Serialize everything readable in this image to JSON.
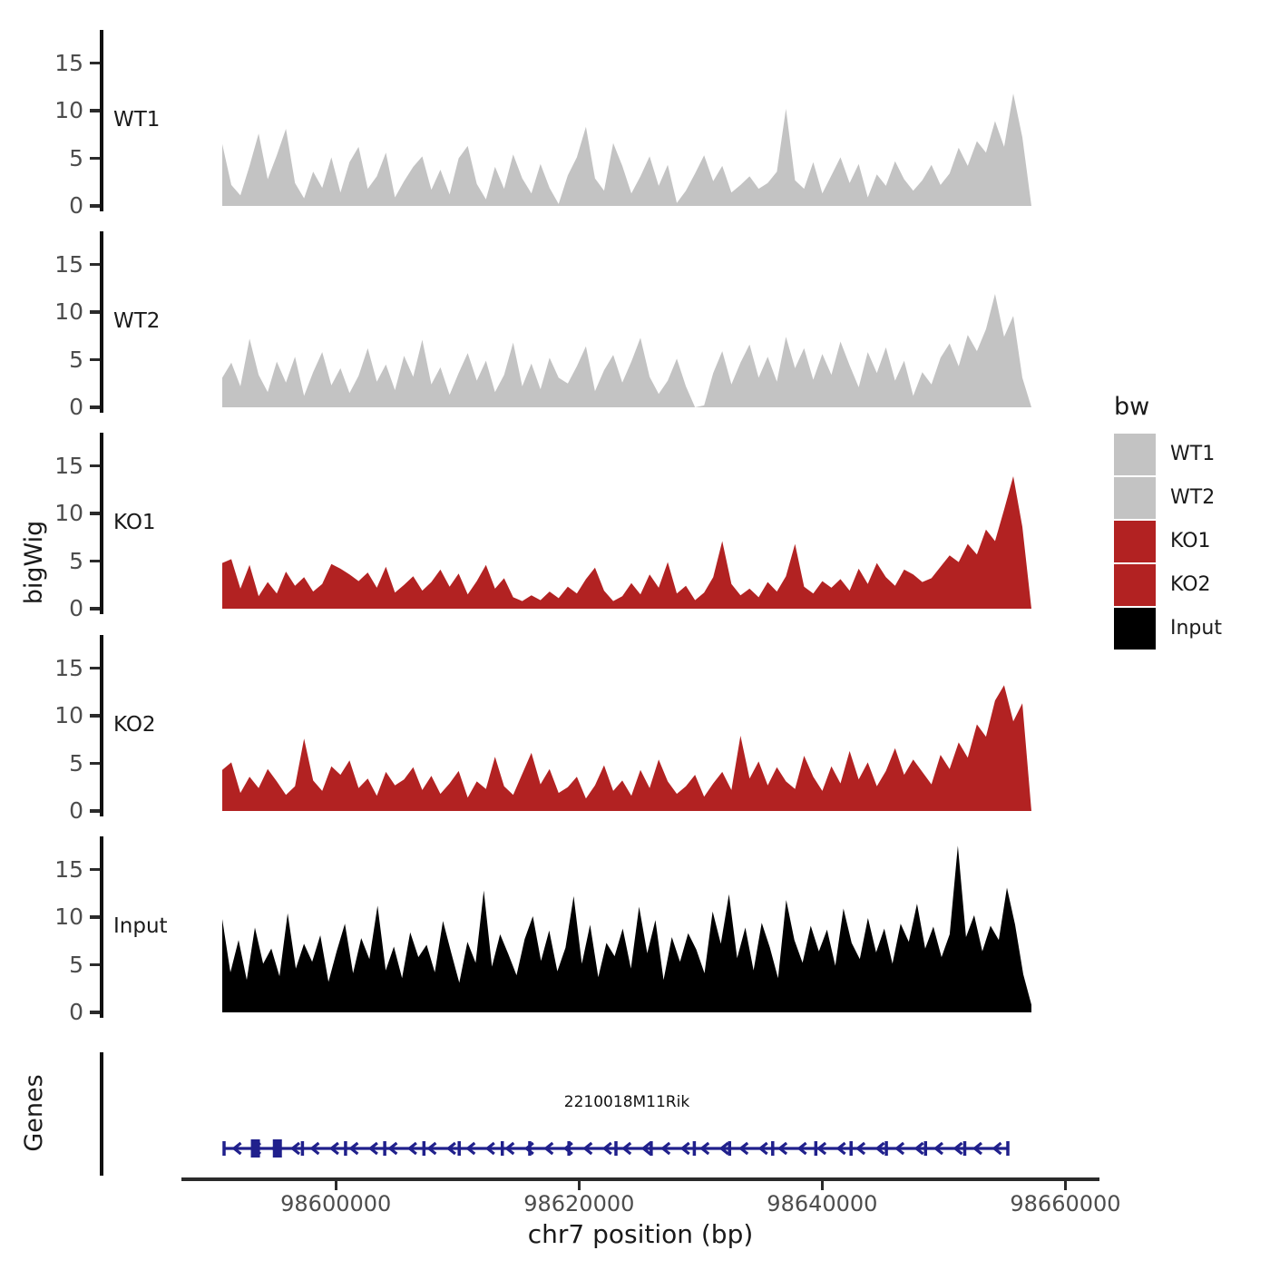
{
  "chart_data": {
    "type": "area",
    "title": "",
    "xlabel": "chr7 position (bp)",
    "ylabel": "bigWig",
    "genes_panel_label": "Genes",
    "grid": false,
    "x_range_bp": [
      98587300,
      98662800
    ],
    "x_ticks_bp": [
      98600000,
      98620000,
      98640000,
      98660000
    ],
    "x_tick_labels": [
      "98600000",
      "98620000",
      "98640000",
      "98660000"
    ],
    "y_ticks": [
      0,
      5,
      10,
      15
    ],
    "y_limit": [
      0,
      18
    ],
    "track_x_range_bp": [
      98590700,
      98657300
    ],
    "panels": [
      {
        "name": "WT1",
        "color": "#c3c3c3",
        "values": [
          6.5,
          2.2,
          1.1,
          4.2,
          7.6,
          2.8,
          5.3,
          8.1,
          2.4,
          0.8,
          3.6,
          1.9,
          5.1,
          1.4,
          4.6,
          6.2,
          1.8,
          3.1,
          5.6,
          0.9,
          2.6,
          4.1,
          5.2,
          1.7,
          3.8,
          1.2,
          5.0,
          6.3,
          2.3,
          0.7,
          4.1,
          1.8,
          5.4,
          2.9,
          1.3,
          4.4,
          1.9,
          0.2,
          3.2,
          5.1,
          8.3,
          2.9,
          1.6,
          6.6,
          4.2,
          1.3,
          3.1,
          5.2,
          2.1,
          4.3,
          0.3,
          1.6,
          3.4,
          5.3,
          2.6,
          4.2,
          1.4,
          2.2,
          3.1,
          1.8,
          2.4,
          3.6,
          10.2,
          2.7,
          1.8,
          4.6,
          1.3,
          3.2,
          5.1,
          2.4,
          4.4,
          0.9,
          3.3,
          2.1,
          4.7,
          2.8,
          1.6,
          2.7,
          4.3,
          2.2,
          3.4,
          6.1,
          4.2,
          6.8,
          5.6,
          8.9,
          6.2,
          11.8,
          7.2,
          0
        ]
      },
      {
        "name": "WT2",
        "color": "#c3c3c3",
        "values": [
          3.1,
          4.7,
          2.2,
          7.2,
          3.4,
          1.6,
          4.8,
          2.6,
          5.3,
          1.2,
          3.7,
          5.8,
          2.3,
          4.1,
          1.5,
          3.3,
          6.2,
          2.7,
          4.5,
          1.8,
          5.4,
          3.2,
          7.1,
          2.4,
          4.2,
          1.3,
          3.6,
          5.7,
          2.8,
          4.9,
          1.6,
          3.4,
          6.8,
          2.2,
          4.6,
          1.9,
          5.2,
          3.1,
          2.5,
          4.3,
          6.4,
          1.7,
          3.9,
          5.5,
          2.6,
          4.8,
          7.3,
          3.2,
          1.4,
          2.8,
          5.1,
          2.2,
          0,
          0.2,
          3.6,
          5.9,
          2.4,
          4.7,
          6.6,
          3.1,
          5.3,
          2.7,
          7.4,
          4.1,
          6.2,
          2.9,
          5.6,
          3.4,
          6.9,
          4.4,
          2.1,
          5.8,
          3.6,
          6.3,
          2.8,
          4.9,
          1.2,
          3.7,
          2.4,
          5.2,
          6.7,
          4.3,
          7.6,
          5.9,
          8.2,
          11.9,
          7.4,
          9.6,
          3.1,
          0
        ]
      },
      {
        "name": "KO1",
        "color": "#b22222",
        "values": [
          4.8,
          5.2,
          2.1,
          4.6,
          1.3,
          2.8,
          1.6,
          3.9,
          2.4,
          3.3,
          1.8,
          2.6,
          4.7,
          4.2,
          3.6,
          2.9,
          3.8,
          2.2,
          4.4,
          1.7,
          2.5,
          3.4,
          1.9,
          2.8,
          4.1,
          2.3,
          3.7,
          1.5,
          2.9,
          4.6,
          2.1,
          3.2,
          1.2,
          0.8,
          1.4,
          0.9,
          1.8,
          1.1,
          2.3,
          1.6,
          3.1,
          4.3,
          1.9,
          0.8,
          1.3,
          2.7,
          1.5,
          3.6,
          2.2,
          4.9,
          1.6,
          2.4,
          0.9,
          1.7,
          3.3,
          7.1,
          2.6,
          1.4,
          2.1,
          1.2,
          2.8,
          1.8,
          3.4,
          6.8,
          2.3,
          1.6,
          2.9,
          2.2,
          3.1,
          1.9,
          4.2,
          2.6,
          4.8,
          3.3,
          2.4,
          4.1,
          3.6,
          2.8,
          3.2,
          4.4,
          5.6,
          4.9,
          6.8,
          5.7,
          8.3,
          7.1,
          10.4,
          13.9,
          8.6,
          0
        ]
      },
      {
        "name": "KO2",
        "color": "#b22222",
        "values": [
          4.3,
          5.1,
          1.9,
          3.6,
          2.4,
          4.4,
          3.1,
          1.7,
          2.6,
          7.6,
          3.2,
          2.1,
          4.7,
          3.8,
          5.3,
          2.4,
          3.4,
          1.6,
          4.1,
          2.7,
          3.3,
          4.6,
          2.2,
          3.7,
          1.8,
          2.9,
          4.2,
          1.4,
          3.1,
          2.3,
          5.7,
          2.6,
          1.7,
          3.9,
          6.1,
          2.8,
          4.4,
          1.9,
          2.5,
          3.6,
          1.3,
          2.7,
          4.8,
          2.1,
          3.2,
          1.6,
          4.3,
          2.4,
          5.4,
          3.1,
          1.8,
          2.6,
          3.8,
          1.5,
          2.9,
          4.1,
          2.2,
          7.9,
          3.4,
          5.2,
          2.7,
          4.6,
          3.1,
          2.3,
          5.8,
          3.6,
          2.1,
          4.7,
          2.9,
          6.3,
          3.3,
          5.1,
          2.6,
          4.2,
          6.6,
          3.8,
          5.4,
          4.1,
          2.8,
          5.9,
          4.4,
          7.2,
          5.6,
          9.1,
          7.8,
          11.6,
          13.2,
          9.4,
          11.3,
          0
        ]
      },
      {
        "name": "Input",
        "color": "#000000",
        "values": [
          9.8,
          4.2,
          7.6,
          3.4,
          8.9,
          5.1,
          6.7,
          3.8,
          10.4,
          4.6,
          7.2,
          5.3,
          8.1,
          3.2,
          6.4,
          9.3,
          4.1,
          7.8,
          5.6,
          11.2,
          4.4,
          6.9,
          3.6,
          8.4,
          5.8,
          7.1,
          4.2,
          9.6,
          6.3,
          3.1,
          7.4,
          5.2,
          12.8,
          4.8,
          8.2,
          6.1,
          3.9,
          7.7,
          10.1,
          5.4,
          8.6,
          4.3,
          6.8,
          12.2,
          5.1,
          9.2,
          3.7,
          7.3,
          5.9,
          8.8,
          4.6,
          11.1,
          6.2,
          9.7,
          3.4,
          7.9,
          5.3,
          8.3,
          6.6,
          4.1,
          10.6,
          7.2,
          12.4,
          5.7,
          8.9,
          4.4,
          9.4,
          6.8,
          3.6,
          11.8,
          7.6,
          5.2,
          9.1,
          6.4,
          8.7,
          4.9,
          10.9,
          7.3,
          5.6,
          9.9,
          6.3,
          8.8,
          5.1,
          9.3,
          7.4,
          11.4,
          6.7,
          9.0,
          5.8,
          8.2,
          17.5,
          7.9,
          10.2,
          6.4,
          9.1,
          7.6,
          13.1,
          9.2,
          4.0,
          0.8
        ]
      }
    ],
    "legend": {
      "title": "bw",
      "items": [
        {
          "label": "WT1",
          "color": "#c3c3c3"
        },
        {
          "label": "WT2",
          "color": "#c3c3c3"
        },
        {
          "label": "KO1",
          "color": "#b22222"
        },
        {
          "label": "KO2",
          "color": "#b22222"
        },
        {
          "label": "Input",
          "color": "#000000"
        }
      ]
    },
    "gene_track": {
      "gene_name": "2210018M11Rik",
      "strand": "-",
      "gene_start_bp": 98590700,
      "gene_end_bp": 98655400,
      "color": "#20208c",
      "exons_frac": [
        0.1,
        0.155,
        0.205,
        0.255,
        0.3,
        0.355,
        0.39,
        0.44,
        0.5,
        0.545,
        0.6,
        0.645,
        0.7,
        0.755,
        0.8,
        0.845,
        0.895,
        0.945
      ],
      "thick_exons_frac": [
        0.04,
        0.068
      ],
      "arrow_count": 40
    },
    "colors": {
      "axis_text": "#4d4d4d",
      "axis_line": "#2b2b2b",
      "text": "#1a1a1a"
    }
  }
}
